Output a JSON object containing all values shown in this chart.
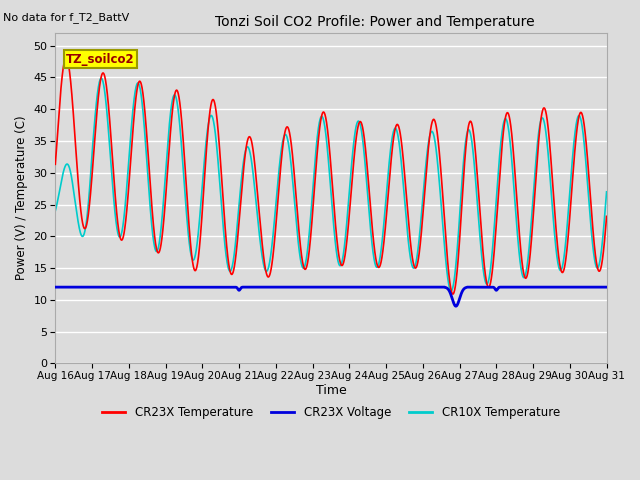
{
  "title": "Tonzi Soil CO2 Profile: Power and Temperature",
  "subtitle": "No data for f_T2_BattV",
  "ylabel": "Power (V) / Temperature (C)",
  "xlabel": "Time",
  "ylim": [
    0,
    52
  ],
  "yticks": [
    0,
    5,
    10,
    15,
    20,
    25,
    30,
    35,
    40,
    45,
    50
  ],
  "xtick_labels": [
    "Aug 16",
    "Aug 17",
    "Aug 18",
    "Aug 19",
    "Aug 20",
    "Aug 21",
    "Aug 22",
    "Aug 23",
    "Aug 24",
    "Aug 25",
    "Aug 26",
    "Aug 27",
    "Aug 28",
    "Aug 29",
    "Aug 30",
    "Aug 31"
  ],
  "legend_items": [
    {
      "label": "CR23X Temperature",
      "color": "#FF0000"
    },
    {
      "label": "CR23X Voltage",
      "color": "#0000CC"
    },
    {
      "label": "CR10X Temperature",
      "color": "#00DDDD"
    }
  ],
  "legend_box_label": "TZ_soilco2",
  "bg_color": "#DCDCDC",
  "voltage_value": 12.0
}
